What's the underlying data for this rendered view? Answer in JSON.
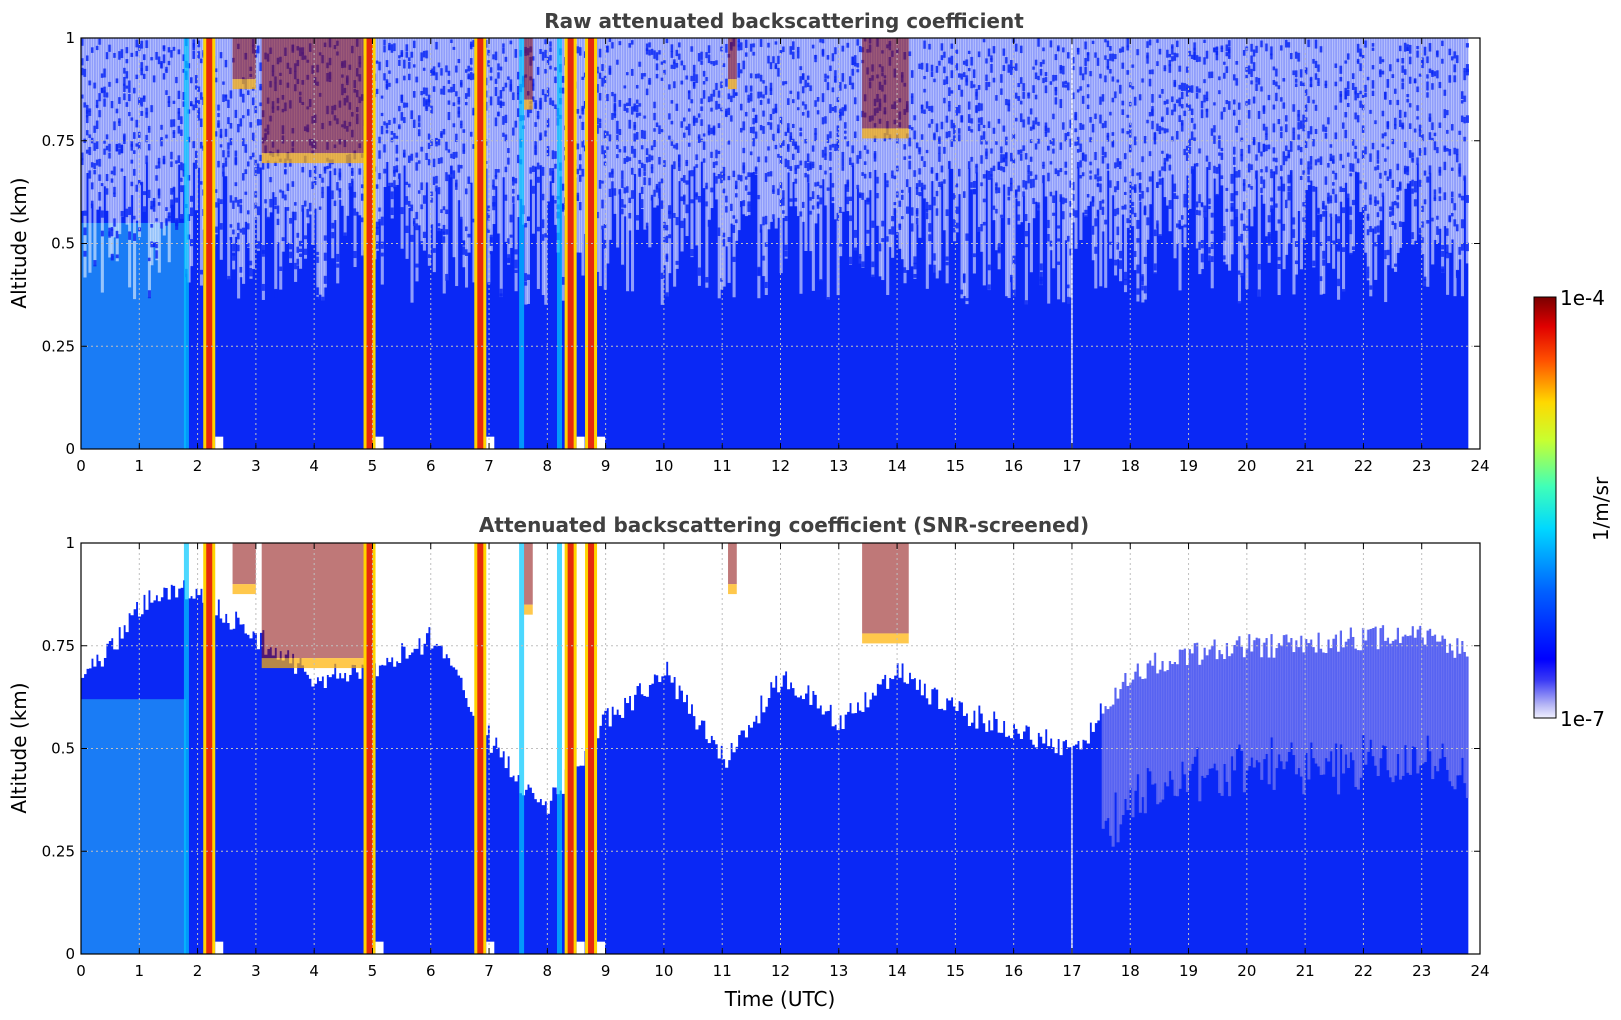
{
  "chart_data": [
    {
      "type": "heatmap",
      "title": "Raw attenuated backscattering coefficient",
      "ylabel": "Altitude (km)",
      "xlabel": "",
      "xlim": [
        0,
        24
      ],
      "ylim": [
        0,
        1
      ],
      "xticks": [
        "0",
        "1",
        "2",
        "3",
        "4",
        "5",
        "6",
        "7",
        "8",
        "9",
        "10",
        "11",
        "12",
        "13",
        "14",
        "15",
        "16",
        "17",
        "18",
        "19",
        "20",
        "21",
        "22",
        "23",
        "24"
      ],
      "yticks": [
        "0",
        "0.25",
        "0.5",
        "0.75",
        "1"
      ],
      "grid": true,
      "data_end_hour": 23.8,
      "mode": "raw",
      "rain_bands_hours": [
        2.2,
        4.95,
        6.85,
        8.4,
        8.75
      ],
      "weak_bands_hours": [
        1.8,
        7.55,
        8.2
      ],
      "cloud_patches": [
        {
          "t0": 2.6,
          "t1": 3.0,
          "alt": 0.9
        },
        {
          "t0": 3.1,
          "t1": 4.9,
          "alt": 0.72
        },
        {
          "t0": 7.6,
          "t1": 7.75,
          "alt": 0.85
        },
        {
          "t0": 11.1,
          "t1": 11.25,
          "alt": 0.9
        },
        {
          "t0": 13.4,
          "t1": 14.2,
          "alt": 0.78
        }
      ]
    },
    {
      "type": "heatmap",
      "title": "Attenuated backscattering coefficient (SNR-screened)",
      "ylabel": "Altitude (km)",
      "xlabel": "Time (UTC)",
      "xlim": [
        0,
        24
      ],
      "ylim": [
        0,
        1
      ],
      "xticks": [
        "0",
        "1",
        "2",
        "3",
        "4",
        "5",
        "6",
        "7",
        "8",
        "9",
        "10",
        "11",
        "12",
        "13",
        "14",
        "15",
        "16",
        "17",
        "18",
        "19",
        "20",
        "21",
        "22",
        "23",
        "24"
      ],
      "yticks": [
        "0",
        "0.25",
        "0.5",
        "0.75",
        "1"
      ],
      "grid": true,
      "data_end_hour": 23.8,
      "mode": "screened",
      "rain_bands_hours": [
        2.2,
        4.95,
        6.85,
        8.4,
        8.75
      ],
      "weak_bands_hours": [
        1.8,
        7.55,
        8.2
      ],
      "cloud_patches": [
        {
          "t0": 2.6,
          "t1": 3.0,
          "alt": 0.9
        },
        {
          "t0": 3.1,
          "t1": 4.9,
          "alt": 0.72
        },
        {
          "t0": 7.6,
          "t1": 7.75,
          "alt": 0.85
        },
        {
          "t0": 11.1,
          "t1": 11.25,
          "alt": 0.9
        },
        {
          "t0": 13.4,
          "t1": 14.2,
          "alt": 0.78
        }
      ],
      "screen_top_profile": [
        {
          "t": 0,
          "alt": 0.7
        },
        {
          "t": 0.5,
          "alt": 0.78
        },
        {
          "t": 1.0,
          "alt": 0.88
        },
        {
          "t": 1.5,
          "alt": 0.92
        },
        {
          "t": 2.0,
          "alt": 0.9
        },
        {
          "t": 3.0,
          "alt": 0.8
        },
        {
          "t": 4.0,
          "alt": 0.7
        },
        {
          "t": 5.0,
          "alt": 0.72
        },
        {
          "t": 6.0,
          "alt": 0.8
        },
        {
          "t": 6.5,
          "alt": 0.7
        },
        {
          "t": 7.0,
          "alt": 0.55
        },
        {
          "t": 7.5,
          "alt": 0.45
        },
        {
          "t": 8.0,
          "alt": 0.4
        },
        {
          "t": 9.0,
          "alt": 0.6
        },
        {
          "t": 10.0,
          "alt": 0.72
        },
        {
          "t": 11.0,
          "alt": 0.5
        },
        {
          "t": 12.0,
          "alt": 0.7
        },
        {
          "t": 13.0,
          "alt": 0.6
        },
        {
          "t": 14.0,
          "alt": 0.72
        },
        {
          "t": 15.0,
          "alt": 0.62
        },
        {
          "t": 16.0,
          "alt": 0.58
        },
        {
          "t": 17.0,
          "alt": 0.52
        },
        {
          "t": 18.0,
          "alt": 0.72
        },
        {
          "t": 19.0,
          "alt": 0.76
        },
        {
          "t": 20.0,
          "alt": 0.78
        },
        {
          "t": 21.0,
          "alt": 0.78
        },
        {
          "t": 22.0,
          "alt": 0.8
        },
        {
          "t": 23.0,
          "alt": 0.8
        },
        {
          "t": 23.8,
          "alt": 0.76
        }
      ]
    }
  ],
  "colorbar": {
    "min_label": "1e-7",
    "max_label": "1e-4",
    "label": "1/m/sr",
    "colormap": "jet"
  },
  "colors": {
    "background_blue": "#0a28f5",
    "light_blue": "#1a7cf5",
    "white": "#ffffff",
    "rain_red": "#e62a0c",
    "dark_red": "#8a0a0a"
  }
}
